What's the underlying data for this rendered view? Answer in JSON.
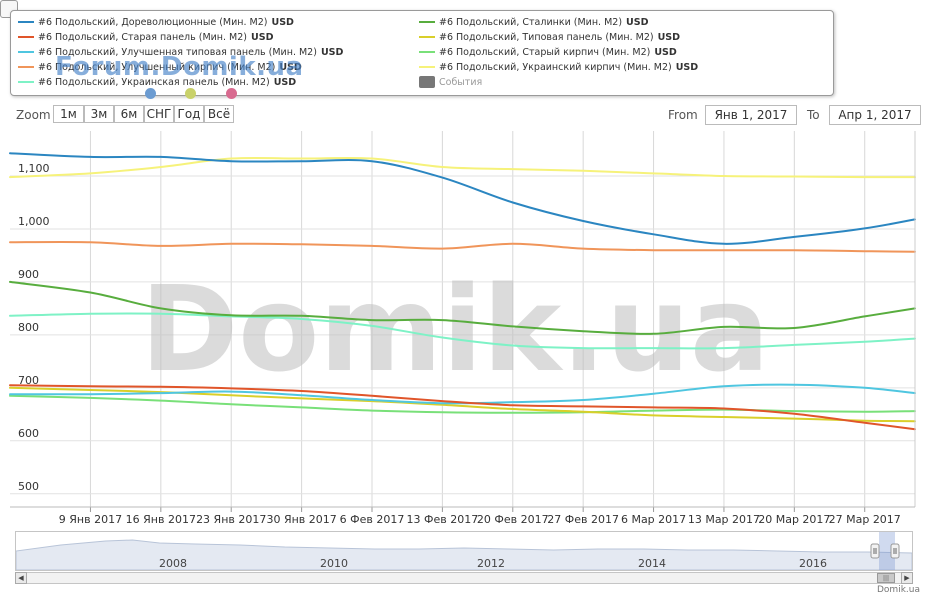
{
  "legend": {
    "unit": "USD",
    "items": [
      {
        "name": "#6 Подольский, Дореволюционные (Мин. М2)",
        "color": "#2b86c1",
        "col": 0,
        "row": 0
      },
      {
        "name": "#6 Подольский, Старая панель (Мин. М2)",
        "color": "#e0552a",
        "col": 0,
        "row": 1
      },
      {
        "name": "#6 Подольский, Улучшенная типовая панель (Мин. М2)",
        "color": "#4fc6e0",
        "col": 0,
        "row": 2
      },
      {
        "name": "#6 Подольский, Улучшенный кирпич (Мин. М2)",
        "color": "#f0955a",
        "col": 0,
        "row": 3
      },
      {
        "name": "#6 Подольский, Украинская панель (Мин. М2)",
        "color": "#7ef2c6",
        "col": 0,
        "row": 4
      },
      {
        "name": "#6 Подольский, Сталинки (Мин. М2)",
        "color": "#58ad3e",
        "col": 1,
        "row": 0
      },
      {
        "name": "#6 Подольский, Типовая панель (Мин. М2)",
        "color": "#d9cf2a",
        "col": 1,
        "row": 1
      },
      {
        "name": "#6 Подольский, Старый кирпич (Мин. М2)",
        "color": "#79e079",
        "col": 1,
        "row": 2
      },
      {
        "name": "#6 Подольский, Украинский кирпич (Мин. М2)",
        "color": "#f6f27a",
        "col": 1,
        "row": 3
      }
    ],
    "events_label": "События"
  },
  "watermark_small": "Forum.Domik.ua",
  "watermark_big": "Domik.ua",
  "watermark_dots": [
    "#6b9bd1",
    "#c9d16a",
    "#d86a8f"
  ],
  "range_selector": {
    "zoom_label": "Zoom",
    "buttons": [
      "1м",
      "3м",
      "6м",
      "СНГ",
      "Год",
      "Всё"
    ],
    "from_label": "From",
    "from_value": "Янв 1, 2017",
    "to_label": "To",
    "to_value": "Апр 1, 2017"
  },
  "navigator": {
    "year_labels": [
      "2008",
      "2010",
      "2012",
      "2014",
      "2016"
    ]
  },
  "credit": "Domik.ua",
  "chart_data": {
    "type": "line",
    "x": [
      "2017-01-01",
      "2017-01-09",
      "2017-01-16",
      "2017-01-23",
      "2017-01-30",
      "2017-02-06",
      "2017-02-13",
      "2017-02-20",
      "2017-02-27",
      "2017-03-06",
      "2017-03-13",
      "2017-03-20",
      "2017-03-27",
      "2017-04-01"
    ],
    "x_tick_labels": [
      "9 Янв 2017",
      "16 Янв 2017",
      "23 Янв 2017",
      "30 Янв 2017",
      "6 Фев 2017",
      "13 Фев 2017",
      "20 Фев 2017",
      "27 Фев 2017",
      "6 Мар 2017",
      "13 Мар 2017",
      "20 Мар 2017",
      "27 Мар 2017"
    ],
    "x_tick_dates": [
      "2017-01-09",
      "2017-01-16",
      "2017-01-23",
      "2017-01-30",
      "2017-02-06",
      "2017-02-13",
      "2017-02-20",
      "2017-02-27",
      "2017-03-06",
      "2017-03-13",
      "2017-03-20",
      "2017-03-27"
    ],
    "y_tick_labels": [
      "500",
      "600",
      "700",
      "800",
      "900",
      "1,000",
      "1,100"
    ],
    "y_ticks": [
      500,
      600,
      700,
      800,
      900,
      1000,
      1100
    ],
    "ylim": [
      475,
      1185
    ],
    "xlim": [
      "2017-01-01",
      "2017-04-01"
    ],
    "grid": true,
    "legend_position": "top",
    "series": [
      {
        "name": "#6 Подольский, Дореволюционные (Мин. М2)",
        "color": "#2b86c1",
        "values": [
          1143,
          1136,
          1136,
          1128,
          1128,
          1128,
          1097,
          1050,
          1015,
          990,
          972,
          985,
          1001,
          1018
        ]
      },
      {
        "name": "#6 Подольский, Сталинки (Мин. М2)",
        "color": "#58ad3e",
        "values": [
          900,
          880,
          850,
          837,
          836,
          828,
          828,
          816,
          807,
          802,
          815,
          813,
          835,
          850
        ]
      },
      {
        "name": "#6 Подольский, Старая панель (Мин. М2)",
        "color": "#e0552a",
        "values": [
          705,
          703,
          702,
          699,
          694,
          685,
          675,
          667,
          665,
          663,
          661,
          651,
          634,
          622
        ]
      },
      {
        "name": "#6 Подольский, Типовая панель (Мин. М2)",
        "color": "#d9cf2a",
        "values": [
          700,
          696,
          692,
          686,
          680,
          675,
          668,
          660,
          655,
          648,
          645,
          642,
          638,
          637
        ]
      },
      {
        "name": "#6 Подольский, Улучшенная типовая панель (Мин. М2)",
        "color": "#4fc6e0",
        "values": [
          688,
          688,
          690,
          693,
          686,
          677,
          671,
          673,
          677,
          689,
          703,
          706,
          700,
          690
        ]
      },
      {
        "name": "#6 Подольский, Старый кирпич (Мин. М2)",
        "color": "#79e079",
        "values": [
          685,
          681,
          676,
          669,
          663,
          657,
          654,
          653,
          654,
          657,
          659,
          656,
          655,
          656
        ]
      },
      {
        "name": "#6 Подольский, Улучшенный кирпич (Мин. М2)",
        "color": "#f0955a",
        "values": [
          975,
          975,
          968,
          972,
          971,
          968,
          963,
          972,
          963,
          960,
          960,
          960,
          958,
          957
        ]
      },
      {
        "name": "#6 Подольский, Украинский кирпич (Мин. М2)",
        "color": "#f6f27a",
        "values": [
          1098,
          1105,
          1117,
          1133,
          1133,
          1133,
          1117,
          1113,
          1110,
          1105,
          1100,
          1099,
          1098,
          1098
        ]
      },
      {
        "name": "#6 Подольский, Украинская панель (Мин. М2)",
        "color": "#7ef2c6",
        "values": [
          836,
          840,
          840,
          835,
          830,
          817,
          795,
          780,
          775,
          775,
          775,
          781,
          787,
          793
        ]
      }
    ]
  }
}
